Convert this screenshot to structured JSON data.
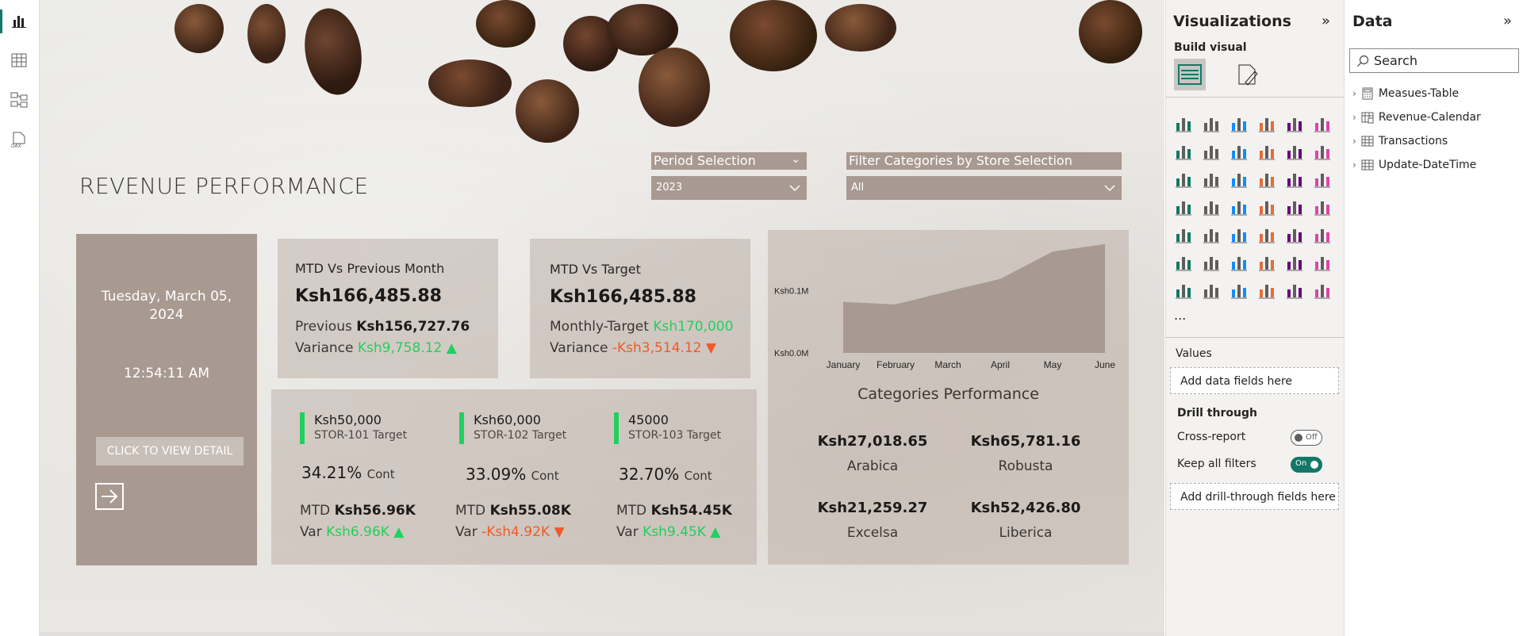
{
  "rail": {
    "items": [
      "report-view",
      "table-view",
      "model-view",
      "dax-query-view"
    ]
  },
  "report": {
    "title": "REVENUE PERFORMANCE",
    "period": {
      "header": "Period Selection",
      "value": "2023"
    },
    "store_filter": {
      "header": "Filter Categories by Store Selection",
      "value": "All"
    },
    "datetime": {
      "date": "Tuesday, March 05, 2024",
      "time": "12:54:11 AM",
      "button": "CLICK TO VIEW DETAIL"
    },
    "mtd_prev": {
      "title": "MTD Vs Previous Month",
      "value": "Ksh166,485.88",
      "prev_label": "Previous",
      "prev_value": "Ksh156,727.76",
      "var_label": "Variance",
      "var_value": "Ksh9,758.12 ▲"
    },
    "mtd_target": {
      "title": "MTD Vs Target",
      "value": "Ksh166,485.88",
      "target_label": "Monthly-Target",
      "target_value": "Ksh170,000",
      "var_label": "Variance",
      "var_value": "-Ksh3,514.12 ▼"
    },
    "stores": [
      {
        "target": "Ksh50,000",
        "name": "STOR-101 Target",
        "pct": "34.21%",
        "cont": "Cont",
        "mtd_label": "MTD",
        "mtd": "Ksh56.96K",
        "var_label": "Var",
        "var": "Ksh6.96K ▲",
        "var_dir": "pos"
      },
      {
        "target": "Ksh60,000",
        "name": "STOR-102 Target",
        "pct": "33.09%",
        "cont": "Cont",
        "mtd_label": "MTD",
        "mtd": "Ksh55.08K",
        "var_label": "Var",
        "var": "-Ksh4.92K ▼",
        "var_dir": "neg"
      },
      {
        "target": "45000",
        "name": "STOR-103 Target",
        "pct": "32.70%",
        "cont": "Cont",
        "mtd_label": "MTD",
        "mtd": "Ksh54.45K",
        "var_label": "Var",
        "var": "Ksh9.45K ▲",
        "var_dir": "pos"
      }
    ],
    "categories_title": "Categories Performance",
    "categories": [
      {
        "value": "Ksh27,018.65",
        "name": "Arabica"
      },
      {
        "value": "Ksh65,781.16",
        "name": "Robusta"
      },
      {
        "value": "Ksh21,259.27",
        "name": "Excelsa"
      },
      {
        "value": "Ksh52,426.80",
        "name": "Liberica"
      }
    ]
  },
  "chart_data": {
    "type": "area",
    "categories": [
      "January",
      "February",
      "March",
      "April",
      "May",
      "June"
    ],
    "values": [
      0.082,
      0.078,
      0.099,
      0.119,
      0.163,
      0.175
    ],
    "ytick_labels": [
      "Ksh0.1M",
      "Ksh0.0M"
    ],
    "ytick_values": [
      0.1,
      0
    ],
    "ylim": [
      0,
      0.185
    ],
    "color": "#a89a91",
    "grid": false
  },
  "viz_pane": {
    "title": "Visualizations",
    "build_label": "Build visual",
    "values_label": "Values",
    "values_placeholder": "Add data fields here",
    "drill_label": "Drill through",
    "cross_report_label": "Cross-report",
    "cross_report_state": "Off",
    "keep_filters_label": "Keep all filters",
    "keep_filters_state": "On",
    "drill_placeholder": "Add drill-through fields here",
    "more": "..."
  },
  "data_pane": {
    "title": "Data",
    "search_placeholder": "Search",
    "tables": [
      "Measues-Table",
      "Revenue-Calendar",
      "Transactions",
      "Update-DateTime"
    ]
  },
  "colors": {
    "accent": "#117865",
    "positive": "#21d05f",
    "negative": "#f05a2a",
    "card": "#a89a91"
  }
}
